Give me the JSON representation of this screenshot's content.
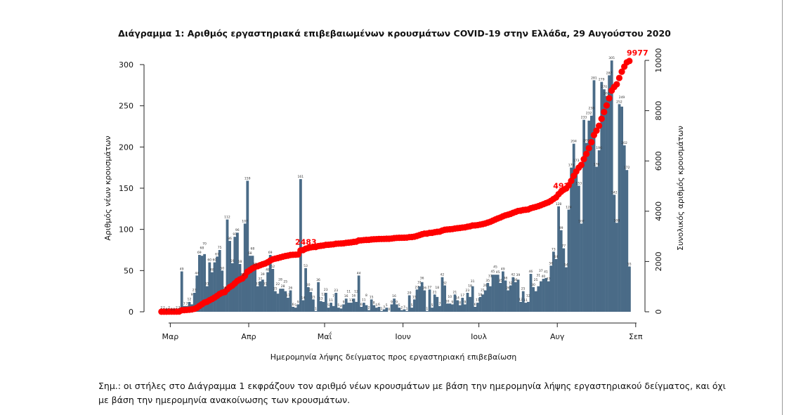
{
  "chart_data": {
    "type": "bar+line",
    "title": "Διάγραμμα 1: Αριθμός εργαστηριακά επιβεβαιωμένων κρουσμάτων COVID-19 στην Ελλάδα, 29 Αυγούστου 2020",
    "xlabel": "Ημερομηνία λήψης δείγματος προς εργαστηριακή επιβεβαίωση",
    "ylabel": "Αριθμός νέων κρουσμάτων",
    "ylabel_right": "Συνολικός αριθμός κρουσμάτων",
    "start_date": "2020-02-26",
    "end_date": "2020-08-29",
    "x_ticks": [
      "Μαρ",
      "Απρ",
      "Μαΐ",
      "Ιουν",
      "Ιουλ",
      "Αυγ",
      "Σεπ"
    ],
    "y_ticks": [
      0,
      50,
      100,
      150,
      200,
      250,
      300
    ],
    "y_right_ticks": [
      0,
      2000,
      4000,
      6000,
      8000,
      10000
    ],
    "ylim": [
      0,
      300
    ],
    "ylim_right": [
      0,
      10000
    ],
    "series": [
      {
        "name": "Νέα κρούσματα",
        "type": "bar",
        "color": "#4a6b87",
        "values": [
          2,
          2,
          0,
          2,
          0,
          0,
          2,
          2,
          49,
          7,
          7,
          12,
          9,
          23,
          44,
          69,
          68,
          70,
          31,
          60,
          48,
          60,
          67,
          75,
          50,
          26,
          112,
          86,
          59,
          91,
          96,
          58,
          42,
          107,
          159,
          68,
          68,
          55,
          31,
          37,
          39,
          31,
          48,
          69,
          52,
          25,
          22,
          28,
          28,
          25,
          17,
          26,
          6,
          5,
          9,
          161,
          14,
          53,
          30,
          24,
          15,
          1,
          36,
          13,
          12,
          23,
          5,
          11,
          7,
          23,
          5,
          4,
          9,
          16,
          11,
          11,
          16,
          12,
          44,
          6,
          11,
          8,
          2,
          15,
          8,
          5,
          6,
          1,
          3,
          5,
          0,
          9,
          16,
          9,
          5,
          2,
          3,
          1,
          20,
          5,
          15,
          27,
          31,
          36,
          26,
          1,
          27,
          5,
          21,
          18,
          7,
          42,
          32,
          10,
          10,
          9,
          21,
          14,
          8,
          17,
          9,
          23,
          18,
          31,
          6,
          11,
          18,
          21,
          26,
          35,
          31,
          45,
          45,
          45,
          35,
          49,
          38,
          26,
          32,
          42,
          36,
          39,
          12,
          25,
          11,
          12,
          46,
          30,
          25,
          31,
          37,
          40,
          41,
          37,
          56,
          73,
          64,
          128,
          99,
          77,
          54,
          124,
          175,
          204,
          173,
          153,
          107,
          233,
          205,
          232,
          238,
          281,
          176,
          196,
          279,
          270,
          262,
          287,
          305,
          142,
          108,
          252,
          249,
          202,
          172,
          55
        ]
      },
      {
        "name": "Συνολικά κρούσματα",
        "type": "line",
        "color": "#ff0000",
        "axis": "right",
        "final": 9977
      }
    ],
    "annotations": [
      {
        "text": "2483",
        "date": "2020-04-21"
      },
      {
        "text": "492",
        "date": "2020-08-01"
      },
      {
        "text": "9977",
        "date": "2020-08-29"
      }
    ]
  },
  "note": {
    "line1": "Σημ.: οι στήλες στο Διάγραμμα 1 εκφράζουν τον αριθμό νέων κρουσμάτων με βάση την ημερομηνία λήψης εργαστηριακού δείγματος, και όχι",
    "line2": "με βάση την ημερομηνία ανακοίνωσης των κρουσμάτων."
  }
}
